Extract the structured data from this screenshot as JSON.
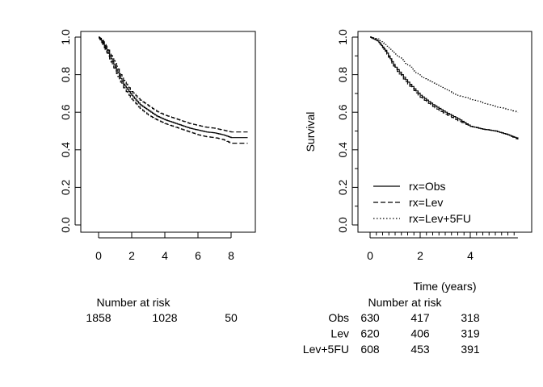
{
  "chart_data": [
    {
      "type": "line",
      "subtype": "kaplan-meier",
      "xlabel": "",
      "ylabel": "",
      "xlim": [
        0,
        9
      ],
      "ylim": [
        0,
        1
      ],
      "x_ticks": [
        0,
        2,
        4,
        6,
        8
      ],
      "y_ticks": [
        0.0,
        0.2,
        0.4,
        0.6,
        0.8,
        1.0
      ],
      "y_tick_labels": [
        "0.0",
        "0.2",
        "0.4",
        "0.6",
        "0.8",
        "1.0"
      ],
      "grid": false,
      "series": [
        {
          "style": "solid",
          "x": [
            0,
            0.2,
            0.5,
            1,
            1.5,
            2,
            2.5,
            3,
            3.5,
            4,
            4.5,
            5,
            5.5,
            6,
            6.5,
            7,
            7.5,
            8,
            9
          ],
          "y": [
            1.0,
            0.98,
            0.93,
            0.84,
            0.75,
            0.69,
            0.64,
            0.61,
            0.58,
            0.56,
            0.545,
            0.53,
            0.515,
            0.505,
            0.495,
            0.49,
            0.48,
            0.465,
            0.465
          ]
        },
        {
          "style": "dashed",
          "x": [
            0,
            0.2,
            0.5,
            1,
            1.5,
            2,
            2.5,
            3,
            3.5,
            4,
            4.5,
            5,
            5.5,
            6,
            6.5,
            7,
            7.5,
            8,
            9
          ],
          "y": [
            1.0,
            0.99,
            0.945,
            0.86,
            0.77,
            0.71,
            0.665,
            0.635,
            0.605,
            0.585,
            0.57,
            0.555,
            0.54,
            0.53,
            0.52,
            0.515,
            0.505,
            0.495,
            0.495
          ]
        },
        {
          "style": "dashed",
          "x": [
            0,
            0.2,
            0.5,
            1,
            1.5,
            2,
            2.5,
            3,
            3.5,
            4,
            4.5,
            5,
            5.5,
            6,
            6.5,
            7,
            7.5,
            8,
            9
          ],
          "y": [
            1.0,
            0.97,
            0.915,
            0.82,
            0.73,
            0.67,
            0.62,
            0.585,
            0.56,
            0.54,
            0.525,
            0.51,
            0.495,
            0.48,
            0.47,
            0.465,
            0.455,
            0.435,
            0.435
          ]
        }
      ],
      "risk_table": {
        "title": "Number at risk",
        "at_x": [
          0,
          4,
          8
        ],
        "rows": [
          {
            "label": "",
            "counts": [
              "1858",
              "1028",
              "50"
            ]
          }
        ]
      }
    },
    {
      "type": "line",
      "subtype": "kaplan-meier",
      "xlabel": "Time (years)",
      "ylabel": "Survival",
      "xlim": [
        0,
        5.9
      ],
      "ylim": [
        0,
        1
      ],
      "x_ticks": [
        0,
        2,
        4
      ],
      "x_minor_tick_step": 0.25,
      "y_ticks": [
        0.0,
        0.2,
        0.4,
        0.6,
        0.8,
        1.0
      ],
      "y_tick_labels": [
        "0.0",
        "0.2",
        "0.4",
        "0.6",
        "0.8",
        "1.0"
      ],
      "y_minor_tick_step": 0.1,
      "grid": false,
      "legend_position": "bottom-left",
      "series": [
        {
          "name": "rx=Obs",
          "style": "solid",
          "x": [
            0,
            0.3,
            0.6,
            1,
            1.5,
            2,
            2.5,
            3,
            3.5,
            4,
            4.5,
            5,
            5.5,
            5.9
          ],
          "y": [
            1.0,
            0.98,
            0.93,
            0.84,
            0.76,
            0.69,
            0.64,
            0.6,
            0.565,
            0.525,
            0.51,
            0.5,
            0.48,
            0.46
          ]
        },
        {
          "name": "rx=Lev",
          "style": "dashed",
          "x": [
            0,
            0.3,
            0.6,
            1,
            1.5,
            2,
            2.5,
            3,
            3.5,
            4,
            4.5,
            5,
            5.5,
            5.9
          ],
          "y": [
            1.0,
            0.98,
            0.925,
            0.83,
            0.75,
            0.68,
            0.63,
            0.59,
            0.555,
            0.525,
            0.51,
            0.5,
            0.48,
            0.455
          ]
        },
        {
          "name": "rx=Lev+5FU",
          "style": "dotted",
          "x": [
            0,
            0.3,
            0.6,
            1,
            1.5,
            2,
            2.5,
            3,
            3.5,
            4,
            4.5,
            5,
            5.5,
            5.9
          ],
          "y": [
            1.0,
            0.99,
            0.96,
            0.91,
            0.85,
            0.79,
            0.755,
            0.72,
            0.69,
            0.67,
            0.65,
            0.63,
            0.615,
            0.6
          ]
        }
      ],
      "risk_table": {
        "title": "Number at risk",
        "at_x": [
          0,
          2,
          4
        ],
        "rows": [
          {
            "label": "Obs",
            "counts": [
              "630",
              "417",
              "318"
            ]
          },
          {
            "label": "Lev",
            "counts": [
              "620",
              "406",
              "319"
            ]
          },
          {
            "label": "Lev+5FU",
            "counts": [
              "608",
              "453",
              "391"
            ]
          }
        ]
      }
    }
  ]
}
